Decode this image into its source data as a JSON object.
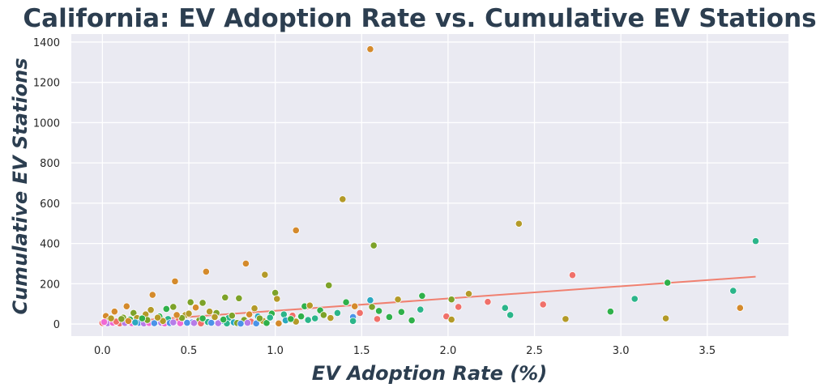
{
  "chart_data": {
    "type": "scatter",
    "title": "California: EV Adoption Rate vs. Cumulative EV Stations",
    "xlabel": "EV Adoption Rate (%)",
    "ylabel": "Cumulative EV Stations",
    "xlim": [
      -0.18,
      3.97
    ],
    "ylim": [
      -60,
      1440
    ],
    "xticks": [
      "0.0",
      "0.5",
      "1.0",
      "1.5",
      "2.0",
      "2.5",
      "3.0",
      "3.5"
    ],
    "xtick_values": [
      0,
      0.5,
      1.0,
      1.5,
      2.0,
      2.5,
      3.0,
      3.5
    ],
    "yticks": [
      "0",
      "200",
      "400",
      "600",
      "800",
      "1000",
      "1200",
      "1400"
    ],
    "ytick_values": [
      0,
      200,
      400,
      600,
      800,
      1000,
      1200,
      1400
    ],
    "grid": true,
    "background": "#eaeaf2",
    "trend_line": {
      "color": "#f08070",
      "points": [
        [
          0.0,
          5
        ],
        [
          3.78,
          235
        ]
      ]
    },
    "colors": [
      "#f0706a",
      "#d48a2c",
      "#b39a28",
      "#7da229",
      "#2fb04a",
      "#2bb58a",
      "#2aa8c0",
      "#4c93e8",
      "#b57ce8",
      "#f06ad4"
    ],
    "points": [
      [
        1.55,
        1365,
        1
      ],
      [
        1.39,
        620,
        2
      ],
      [
        2.41,
        498,
        2
      ],
      [
        1.12,
        465,
        1
      ],
      [
        1.57,
        390,
        3
      ],
      [
        3.78,
        412,
        5
      ],
      [
        0.83,
        300,
        1
      ],
      [
        0.6,
        260,
        1
      ],
      [
        0.94,
        245,
        2
      ],
      [
        2.72,
        243,
        0
      ],
      [
        0.42,
        212,
        1
      ],
      [
        3.27,
        205,
        4
      ],
      [
        1.31,
        192,
        3
      ],
      [
        3.65,
        165,
        5
      ],
      [
        1.0,
        155,
        3
      ],
      [
        0.29,
        145,
        1
      ],
      [
        2.12,
        150,
        2
      ],
      [
        1.85,
        140,
        4
      ],
      [
        0.71,
        132,
        3
      ],
      [
        0.79,
        128,
        3
      ],
      [
        3.08,
        125,
        5
      ],
      [
        1.01,
        125,
        2
      ],
      [
        1.71,
        122,
        2
      ],
      [
        1.55,
        118,
        6
      ],
      [
        2.02,
        122,
        3
      ],
      [
        2.23,
        110,
        0
      ],
      [
        1.41,
        108,
        4
      ],
      [
        0.51,
        108,
        3
      ],
      [
        0.58,
        105,
        3
      ],
      [
        2.55,
        97,
        0
      ],
      [
        0.14,
        88,
        1
      ],
      [
        0.41,
        85,
        3
      ],
      [
        1.17,
        88,
        4
      ],
      [
        1.2,
        92,
        2
      ],
      [
        1.46,
        88,
        1
      ],
      [
        0.88,
        78,
        2
      ],
      [
        1.56,
        85,
        3
      ],
      [
        2.06,
        85,
        0
      ],
      [
        0.54,
        82,
        1
      ],
      [
        0.37,
        75,
        4
      ],
      [
        1.84,
        72,
        5
      ],
      [
        2.33,
        80,
        5
      ],
      [
        3.69,
        80,
        1
      ],
      [
        0.07,
        62,
        1
      ],
      [
        0.28,
        70,
        2
      ],
      [
        1.26,
        68,
        4
      ],
      [
        1.6,
        65,
        4
      ],
      [
        2.94,
        62,
        4
      ],
      [
        1.49,
        55,
        0
      ],
      [
        1.73,
        60,
        4
      ],
      [
        0.18,
        55,
        3
      ],
      [
        0.62,
        62,
        2
      ],
      [
        0.66,
        55,
        3
      ],
      [
        0.98,
        52,
        4
      ],
      [
        1.05,
        48,
        5
      ],
      [
        1.36,
        55,
        5
      ],
      [
        0.25,
        48,
        2
      ],
      [
        0.48,
        45,
        2
      ],
      [
        2.36,
        45,
        5
      ],
      [
        1.1,
        42,
        0
      ],
      [
        0.02,
        40,
        1
      ],
      [
        0.33,
        38,
        4
      ],
      [
        0.9,
        38,
        6
      ],
      [
        1.99,
        38,
        0
      ],
      [
        1.45,
        35,
        7
      ],
      [
        1.66,
        35,
        4
      ],
      [
        1.32,
        30,
        2
      ],
      [
        0.12,
        32,
        3
      ],
      [
        0.2,
        30,
        2
      ],
      [
        0.73,
        30,
        5
      ],
      [
        1.23,
        28,
        5
      ],
      [
        1.59,
        25,
        0
      ],
      [
        1.79,
        18,
        4
      ],
      [
        2.02,
        22,
        2
      ],
      [
        2.68,
        25,
        2
      ],
      [
        3.26,
        28,
        2
      ],
      [
        0.04,
        20,
        2
      ],
      [
        0.16,
        22,
        4
      ],
      [
        0.38,
        25,
        5
      ],
      [
        0.44,
        20,
        0
      ],
      [
        0.56,
        18,
        3
      ],
      [
        0.69,
        15,
        7
      ],
      [
        0.82,
        20,
        3
      ],
      [
        0.93,
        15,
        2
      ],
      [
        1.06,
        18,
        6
      ],
      [
        1.12,
        12,
        2
      ],
      [
        1.45,
        15,
        5
      ],
      [
        0.09,
        10,
        5
      ],
      [
        0.22,
        12,
        0
      ],
      [
        0.31,
        8,
        6
      ],
      [
        0.47,
        12,
        4
      ],
      [
        0.52,
        8,
        7
      ],
      [
        0.61,
        10,
        5
      ],
      [
        0.76,
        8,
        6
      ],
      [
        0.86,
        12,
        0
      ],
      [
        0.95,
        5,
        4
      ],
      [
        1.02,
        3,
        1
      ],
      [
        0.0,
        5,
        0
      ],
      [
        0.03,
        4,
        8
      ],
      [
        0.06,
        6,
        9
      ],
      [
        0.1,
        3,
        0
      ],
      [
        0.13,
        5,
        8
      ],
      [
        0.17,
        4,
        9
      ],
      [
        0.21,
        6,
        7
      ],
      [
        0.24,
        3,
        8
      ],
      [
        0.27,
        5,
        9
      ],
      [
        0.3,
        4,
        7
      ],
      [
        0.34,
        6,
        8
      ],
      [
        0.36,
        3,
        9
      ],
      [
        0.39,
        5,
        7
      ],
      [
        0.41,
        8,
        8
      ],
      [
        0.45,
        4,
        9
      ],
      [
        0.49,
        6,
        7
      ],
      [
        0.53,
        5,
        8
      ],
      [
        0.57,
        3,
        0
      ],
      [
        0.63,
        6,
        7
      ],
      [
        0.67,
        4,
        8
      ],
      [
        0.72,
        3,
        5
      ],
      [
        0.78,
        5,
        3
      ],
      [
        0.8,
        2,
        7
      ],
      [
        0.84,
        6,
        8
      ],
      [
        0.89,
        3,
        7
      ],
      [
        0.46,
        30,
        3
      ],
      [
        0.35,
        15,
        2
      ],
      [
        0.26,
        20,
        3
      ],
      [
        0.15,
        15,
        1
      ],
      [
        0.08,
        12,
        0
      ],
      [
        0.01,
        10,
        9
      ],
      [
        0.19,
        8,
        6
      ],
      [
        0.58,
        28,
        4
      ],
      [
        0.65,
        35,
        2
      ],
      [
        0.75,
        42,
        3
      ],
      [
        0.85,
        48,
        1
      ],
      [
        0.97,
        32,
        5
      ],
      [
        1.15,
        38,
        4
      ],
      [
        1.28,
        45,
        3
      ],
      [
        0.5,
        52,
        2
      ],
      [
        0.43,
        45,
        1
      ],
      [
        0.32,
        32,
        2
      ],
      [
        0.23,
        28,
        4
      ],
      [
        0.11,
        25,
        3
      ],
      [
        0.05,
        28,
        2
      ],
      [
        0.7,
        22,
        4
      ],
      [
        0.91,
        28,
        3
      ],
      [
        1.09,
        25,
        4
      ],
      [
        1.19,
        20,
        5
      ]
    ]
  }
}
